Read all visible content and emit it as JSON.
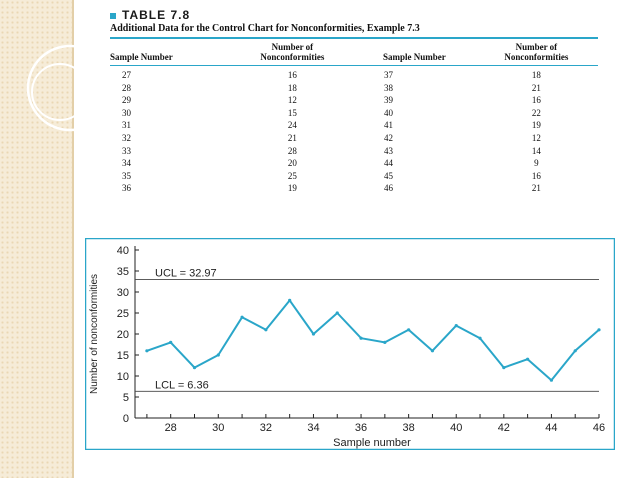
{
  "table": {
    "label": "TABLE 7.8",
    "caption": "Additional Data for the Control Chart for Nonconformities, Example 7.3",
    "headers": [
      "Sample Number",
      "Number of\nNonconformities",
      "Sample Number",
      "Number of\nNonconformities"
    ],
    "rows": [
      [
        "27",
        "16",
        "37",
        "18"
      ],
      [
        "28",
        "18",
        "38",
        "21"
      ],
      [
        "29",
        "12",
        "39",
        "16"
      ],
      [
        "30",
        "15",
        "40",
        "22"
      ],
      [
        "31",
        "24",
        "41",
        "19"
      ],
      [
        "32",
        "21",
        "42",
        "12"
      ],
      [
        "33",
        "28",
        "43",
        "14"
      ],
      [
        "34",
        "20",
        "44",
        "9"
      ],
      [
        "35",
        "25",
        "45",
        "16"
      ],
      [
        "36",
        "19",
        "46",
        "21"
      ]
    ]
  },
  "chart_data": {
    "type": "line",
    "title": "",
    "xlabel": "Sample number",
    "ylabel": "Number of nonconformities",
    "x": [
      27,
      28,
      29,
      30,
      31,
      32,
      33,
      34,
      35,
      36,
      37,
      38,
      39,
      40,
      41,
      42,
      43,
      44,
      45,
      46
    ],
    "series": [
      {
        "values": [
          16,
          18,
          12,
          15,
          24,
          21,
          28,
          20,
          25,
          19,
          18,
          21,
          16,
          22,
          19,
          12,
          14,
          9,
          16,
          21
        ]
      }
    ],
    "xlim": [
      26.5,
      46
    ],
    "ylim": [
      0,
      40
    ],
    "xticks": [
      28,
      30,
      32,
      34,
      36,
      38,
      40,
      42,
      44,
      46
    ],
    "yticks": [
      0,
      5,
      10,
      15,
      20,
      25,
      30,
      35,
      40
    ],
    "grid": false,
    "control_limits": [
      {
        "label": "UCL = 32.97",
        "value": 32.97
      },
      {
        "label": "LCL = 6.36",
        "value": 6.36
      }
    ],
    "line_color": "#2aa6c9"
  }
}
